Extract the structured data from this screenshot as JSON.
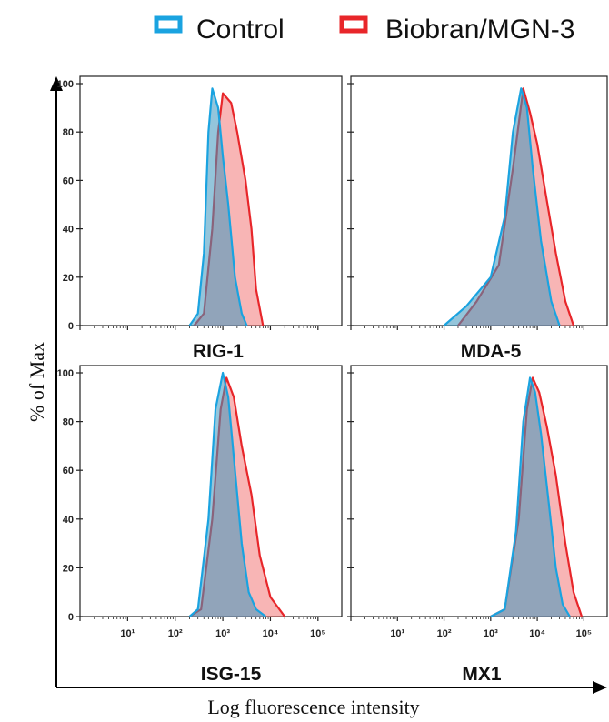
{
  "legend": [
    {
      "label": "Control",
      "color": "#1aa3e0"
    },
    {
      "label": "Biobran/MGN-3",
      "color": "#e8262a"
    }
  ],
  "xaxis_title": "Log fluorescence intensity",
  "yaxis_title": "% of Max",
  "chart_data": [
    {
      "type": "area",
      "title": "RIG-1",
      "xscale": "log",
      "xlim": [
        1,
        316227
      ],
      "ylim": [
        0,
        100
      ],
      "yticks": [
        "0",
        "20",
        "40",
        "60",
        "80",
        "100"
      ],
      "xticks": [],
      "series": [
        {
          "name": "Control",
          "color": "#1aa3e0",
          "x": [
            200,
            300,
            400,
            500,
            600,
            800,
            1000,
            1300,
            1800,
            2500,
            3200
          ],
          "y": [
            0,
            5,
            30,
            80,
            98,
            90,
            70,
            50,
            20,
            5,
            0
          ]
        },
        {
          "name": "Biobran/MGN-3",
          "color": "#e8262a",
          "x": [
            250,
            400,
            600,
            800,
            1000,
            1500,
            2000,
            3000,
            4000,
            5000,
            7000
          ],
          "y": [
            0,
            5,
            40,
            80,
            96,
            92,
            80,
            60,
            40,
            15,
            0
          ]
        }
      ]
    },
    {
      "type": "area",
      "title": "MDA-5",
      "xscale": "log",
      "xlim": [
        1,
        316227
      ],
      "ylim": [
        0,
        100
      ],
      "yticks": [],
      "xticks": [],
      "series": [
        {
          "name": "Control",
          "color": "#1aa3e0",
          "x": [
            100,
            300,
            1000,
            2000,
            3000,
            4500,
            6000,
            8000,
            12000,
            20000,
            30000
          ],
          "y": [
            0,
            8,
            20,
            45,
            80,
            98,
            90,
            65,
            35,
            10,
            0
          ]
        },
        {
          "name": "Biobran/MGN-3",
          "color": "#e8262a",
          "x": [
            200,
            500,
            1500,
            3000,
            5000,
            7000,
            10000,
            15000,
            25000,
            40000,
            60000
          ],
          "y": [
            0,
            10,
            25,
            65,
            98,
            88,
            75,
            55,
            30,
            10,
            0
          ]
        }
      ]
    },
    {
      "type": "area",
      "title": "ISG-15",
      "xscale": "log",
      "xlim": [
        1,
        316227
      ],
      "ylim": [
        0,
        100
      ],
      "yticks": [
        "0",
        "20",
        "40",
        "60",
        "80",
        "100"
      ],
      "xticks": [
        "10¹",
        "10²",
        "10³",
        "10⁴",
        "10⁵"
      ],
      "series": [
        {
          "name": "Control",
          "color": "#1aa3e0",
          "x": [
            200,
            300,
            500,
            700,
            1000,
            1300,
            1800,
            2500,
            3500,
            5000,
            8000
          ],
          "y": [
            0,
            3,
            40,
            85,
            100,
            90,
            60,
            30,
            10,
            3,
            0
          ]
        },
        {
          "name": "Biobran/MGN-3",
          "color": "#e8262a",
          "x": [
            200,
            350,
            600,
            900,
            1200,
            1700,
            2500,
            4000,
            6000,
            10000,
            20000
          ],
          "y": [
            0,
            3,
            40,
            85,
            98,
            90,
            70,
            50,
            25,
            8,
            0
          ]
        }
      ]
    },
    {
      "type": "area",
      "title": "MX1",
      "xscale": "log",
      "xlim": [
        1,
        316227
      ],
      "ylim": [
        0,
        100
      ],
      "yticks": [],
      "xticks": [
        "10¹",
        "10²",
        "10³",
        "10⁴",
        "10⁵"
      ],
      "series": [
        {
          "name": "Control",
          "color": "#1aa3e0",
          "x": [
            1000,
            2000,
            3500,
            5000,
            7000,
            9000,
            12000,
            18000,
            25000,
            35000,
            50000
          ],
          "y": [
            0,
            3,
            35,
            80,
            98,
            92,
            75,
            45,
            20,
            5,
            0
          ]
        },
        {
          "name": "Biobran/MGN-3",
          "color": "#e8262a",
          "x": [
            1000,
            2000,
            4000,
            6000,
            8000,
            11000,
            16000,
            25000,
            40000,
            60000,
            90000
          ],
          "y": [
            0,
            3,
            40,
            85,
            98,
            92,
            78,
            58,
            30,
            10,
            0
          ]
        }
      ]
    }
  ]
}
